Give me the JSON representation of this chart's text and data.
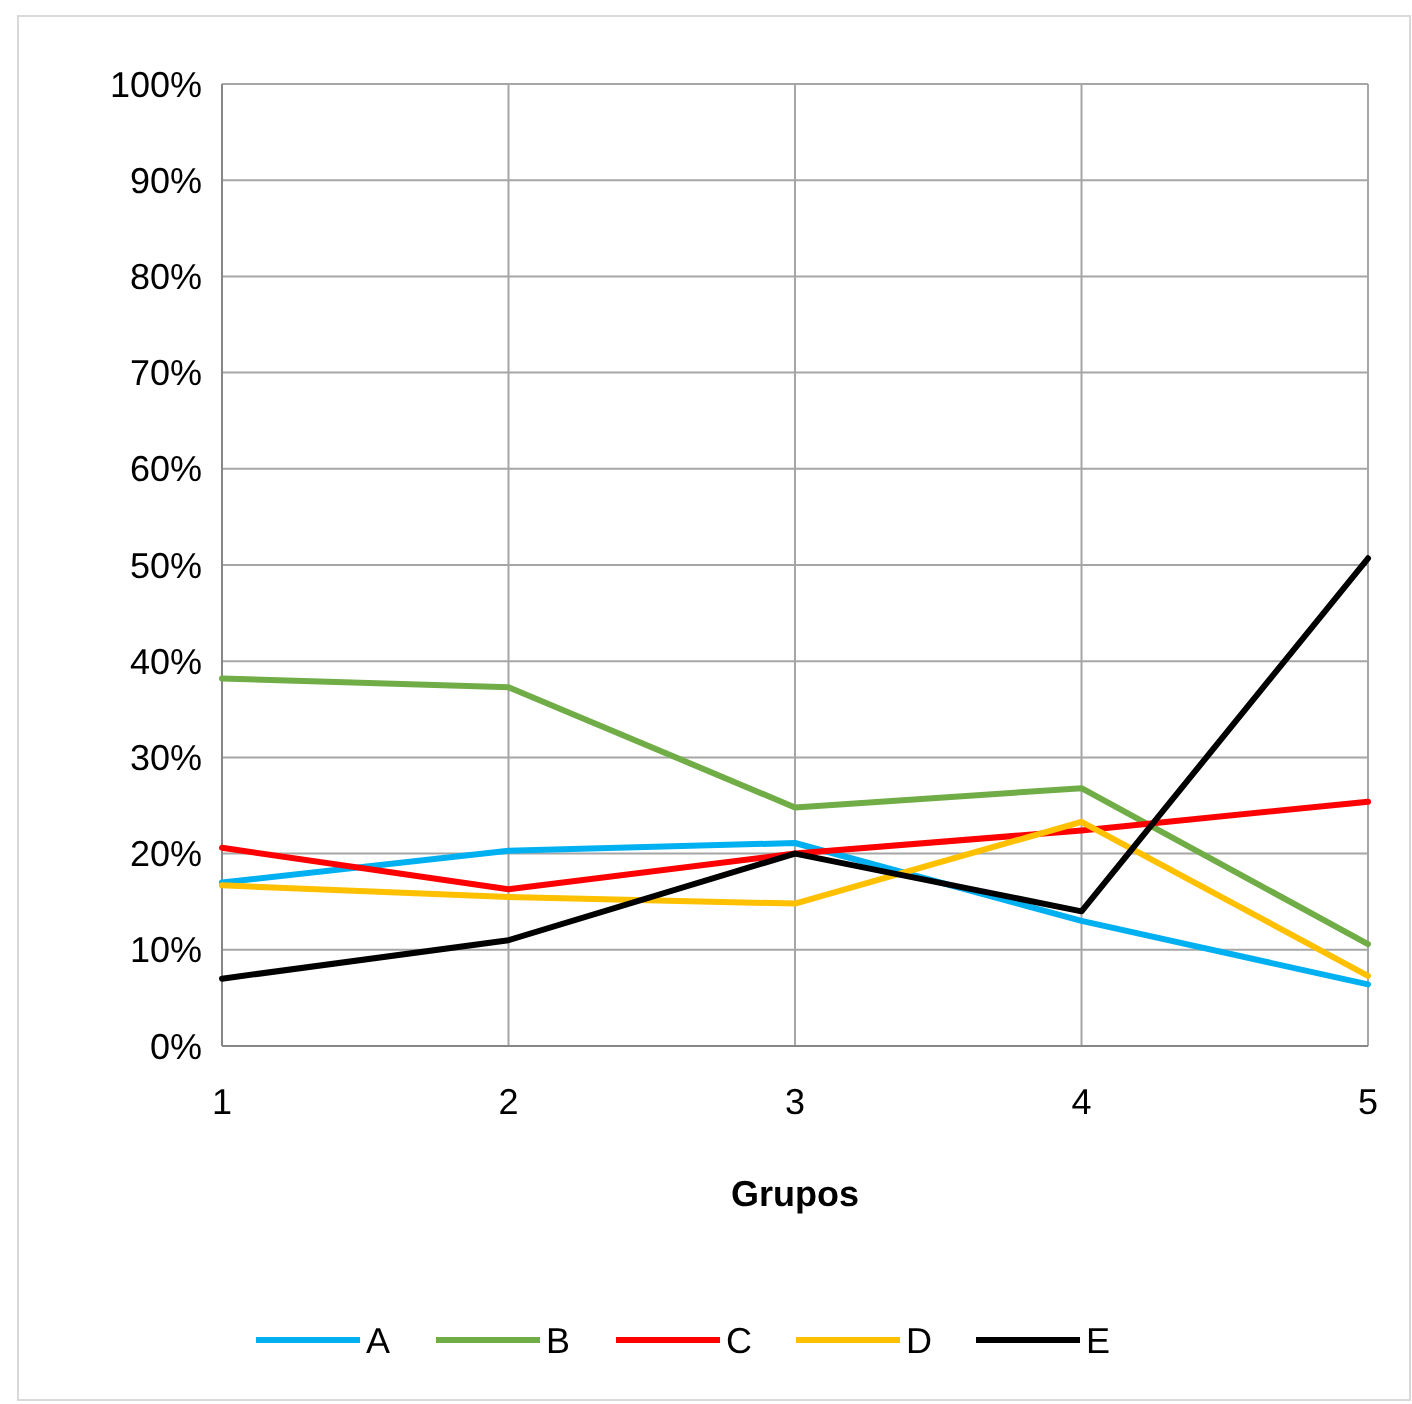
{
  "chart_data": {
    "type": "line",
    "xlabel": "Grupos",
    "x": [
      1,
      2,
      3,
      4,
      5
    ],
    "xlim": [
      1,
      5
    ],
    "xticks": [
      1,
      2,
      3,
      4,
      5
    ],
    "ylim": [
      0,
      100
    ],
    "yticks": [
      {
        "value": 0,
        "label": "0%"
      },
      {
        "value": 10,
        "label": "10%"
      },
      {
        "value": 20,
        "label": "20%"
      },
      {
        "value": 30,
        "label": "30%"
      },
      {
        "value": 40,
        "label": "40%"
      },
      {
        "value": 50,
        "label": "50%"
      },
      {
        "value": 60,
        "label": "60%"
      },
      {
        "value": 70,
        "label": "70%"
      },
      {
        "value": 80,
        "label": "80%"
      },
      {
        "value": 90,
        "label": "90%"
      },
      {
        "value": 100,
        "label": "100%"
      }
    ],
    "grid": true,
    "legend": "bottom",
    "marker": "none",
    "series": [
      {
        "name": "A",
        "color": "#00b0f0",
        "values": [
          17.0,
          20.3,
          21.1,
          13.0,
          6.4
        ]
      },
      {
        "name": "B",
        "color": "#70ad47",
        "values": [
          38.2,
          37.3,
          24.8,
          26.8,
          10.6
        ]
      },
      {
        "name": "C",
        "color": "#ff0000",
        "values": [
          20.6,
          16.3,
          20.0,
          22.4,
          25.4
        ]
      },
      {
        "name": "D",
        "color": "#ffc000",
        "values": [
          16.7,
          15.5,
          14.8,
          23.3,
          7.3
        ]
      },
      {
        "name": "E",
        "color": "#000000",
        "values": [
          7.0,
          11.0,
          20.0,
          14.0,
          50.7
        ]
      }
    ]
  }
}
